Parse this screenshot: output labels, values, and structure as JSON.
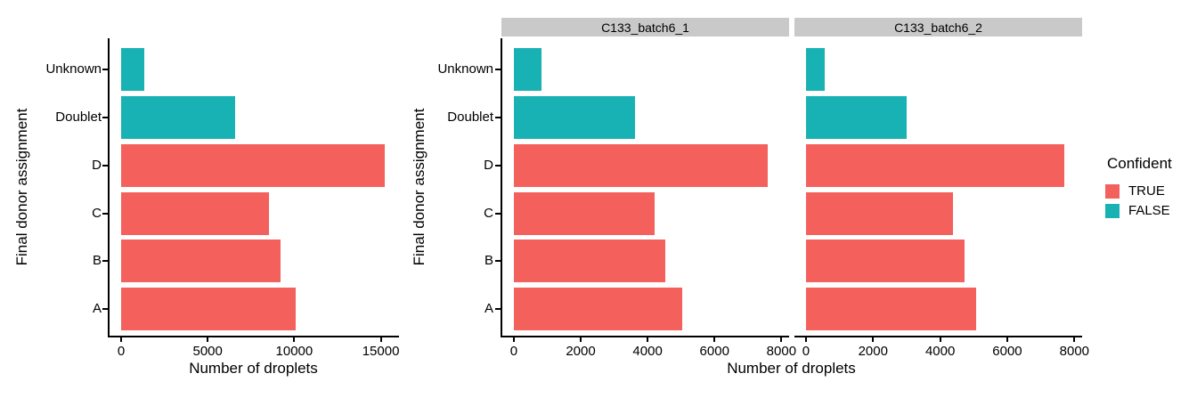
{
  "colors": {
    "confident_true": "#F4605C",
    "confident_false": "#18B2B5",
    "strip_background": "#C9C9C9",
    "axis": "#000000",
    "text": "#000000",
    "background": "#FFFFFF"
  },
  "legend": {
    "title": "Confident",
    "entries": [
      {
        "label": "TRUE",
        "color": "#F4605C"
      },
      {
        "label": "FALSE",
        "color": "#18B2B5"
      }
    ]
  },
  "chart_data": [
    {
      "type": "bar",
      "orientation": "horizontal",
      "title": "",
      "xlabel": "Number of droplets",
      "ylabel": "Final donor assignment",
      "categories_top_to_bottom": [
        "Unknown",
        "Doublet",
        "D",
        "C",
        "B",
        "A"
      ],
      "category_confident": {
        "Unknown": "FALSE",
        "Doublet": "FALSE",
        "D": "TRUE",
        "C": "TRUE",
        "B": "TRUE",
        "A": "TRUE"
      },
      "values": [
        1350,
        6600,
        15250,
        8550,
        9200,
        10100
      ],
      "xticks": [
        0,
        5000,
        10000,
        15000
      ],
      "xlim": [
        0,
        16050
      ],
      "grid": false,
      "legend_position": "none"
    },
    {
      "type": "bar",
      "orientation": "horizontal",
      "title": "",
      "xlabel": "Number of droplets",
      "ylabel": "Final donor assignment",
      "categories_top_to_bottom": [
        "Unknown",
        "Doublet",
        "D",
        "C",
        "B",
        "A"
      ],
      "category_confident": {
        "Unknown": "FALSE",
        "Doublet": "FALSE",
        "D": "TRUE",
        "C": "TRUE",
        "B": "TRUE",
        "A": "TRUE"
      },
      "facets": [
        {
          "label": "C133_batch6_1",
          "values": [
            820,
            3630,
            7600,
            4220,
            4530,
            5040
          ]
        },
        {
          "label": "C133_batch6_2",
          "values": [
            550,
            3000,
            7700,
            4370,
            4720,
            5080
          ]
        }
      ],
      "xticks": [
        0,
        2000,
        4000,
        6000,
        8000
      ],
      "xlim": [
        0,
        8230
      ],
      "grid": false,
      "legend_position": "right"
    }
  ]
}
